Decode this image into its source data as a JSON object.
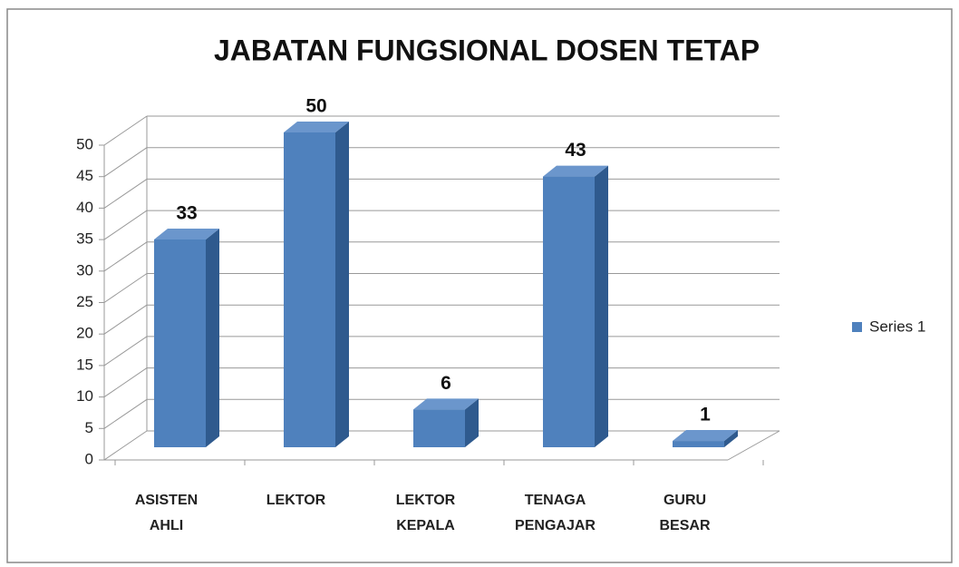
{
  "chart_data": {
    "type": "bar",
    "title": "JABATAN FUNGSIONAL DOSEN TETAP",
    "categories": [
      "ASISTEN AHLI",
      "LEKTOR",
      "LEKTOR KEPALA",
      "TENAGA PENGAJAR",
      "GURU BESAR"
    ],
    "series": [
      {
        "name": "Series 1",
        "color": "#4f81bd",
        "values": [
          33,
          50,
          6,
          43,
          1
        ]
      }
    ],
    "ylim": [
      0,
      50
    ],
    "yticks": [
      0,
      5,
      10,
      15,
      20,
      25,
      30,
      35,
      40,
      45,
      50
    ],
    "grid": true,
    "legend": "right"
  }
}
